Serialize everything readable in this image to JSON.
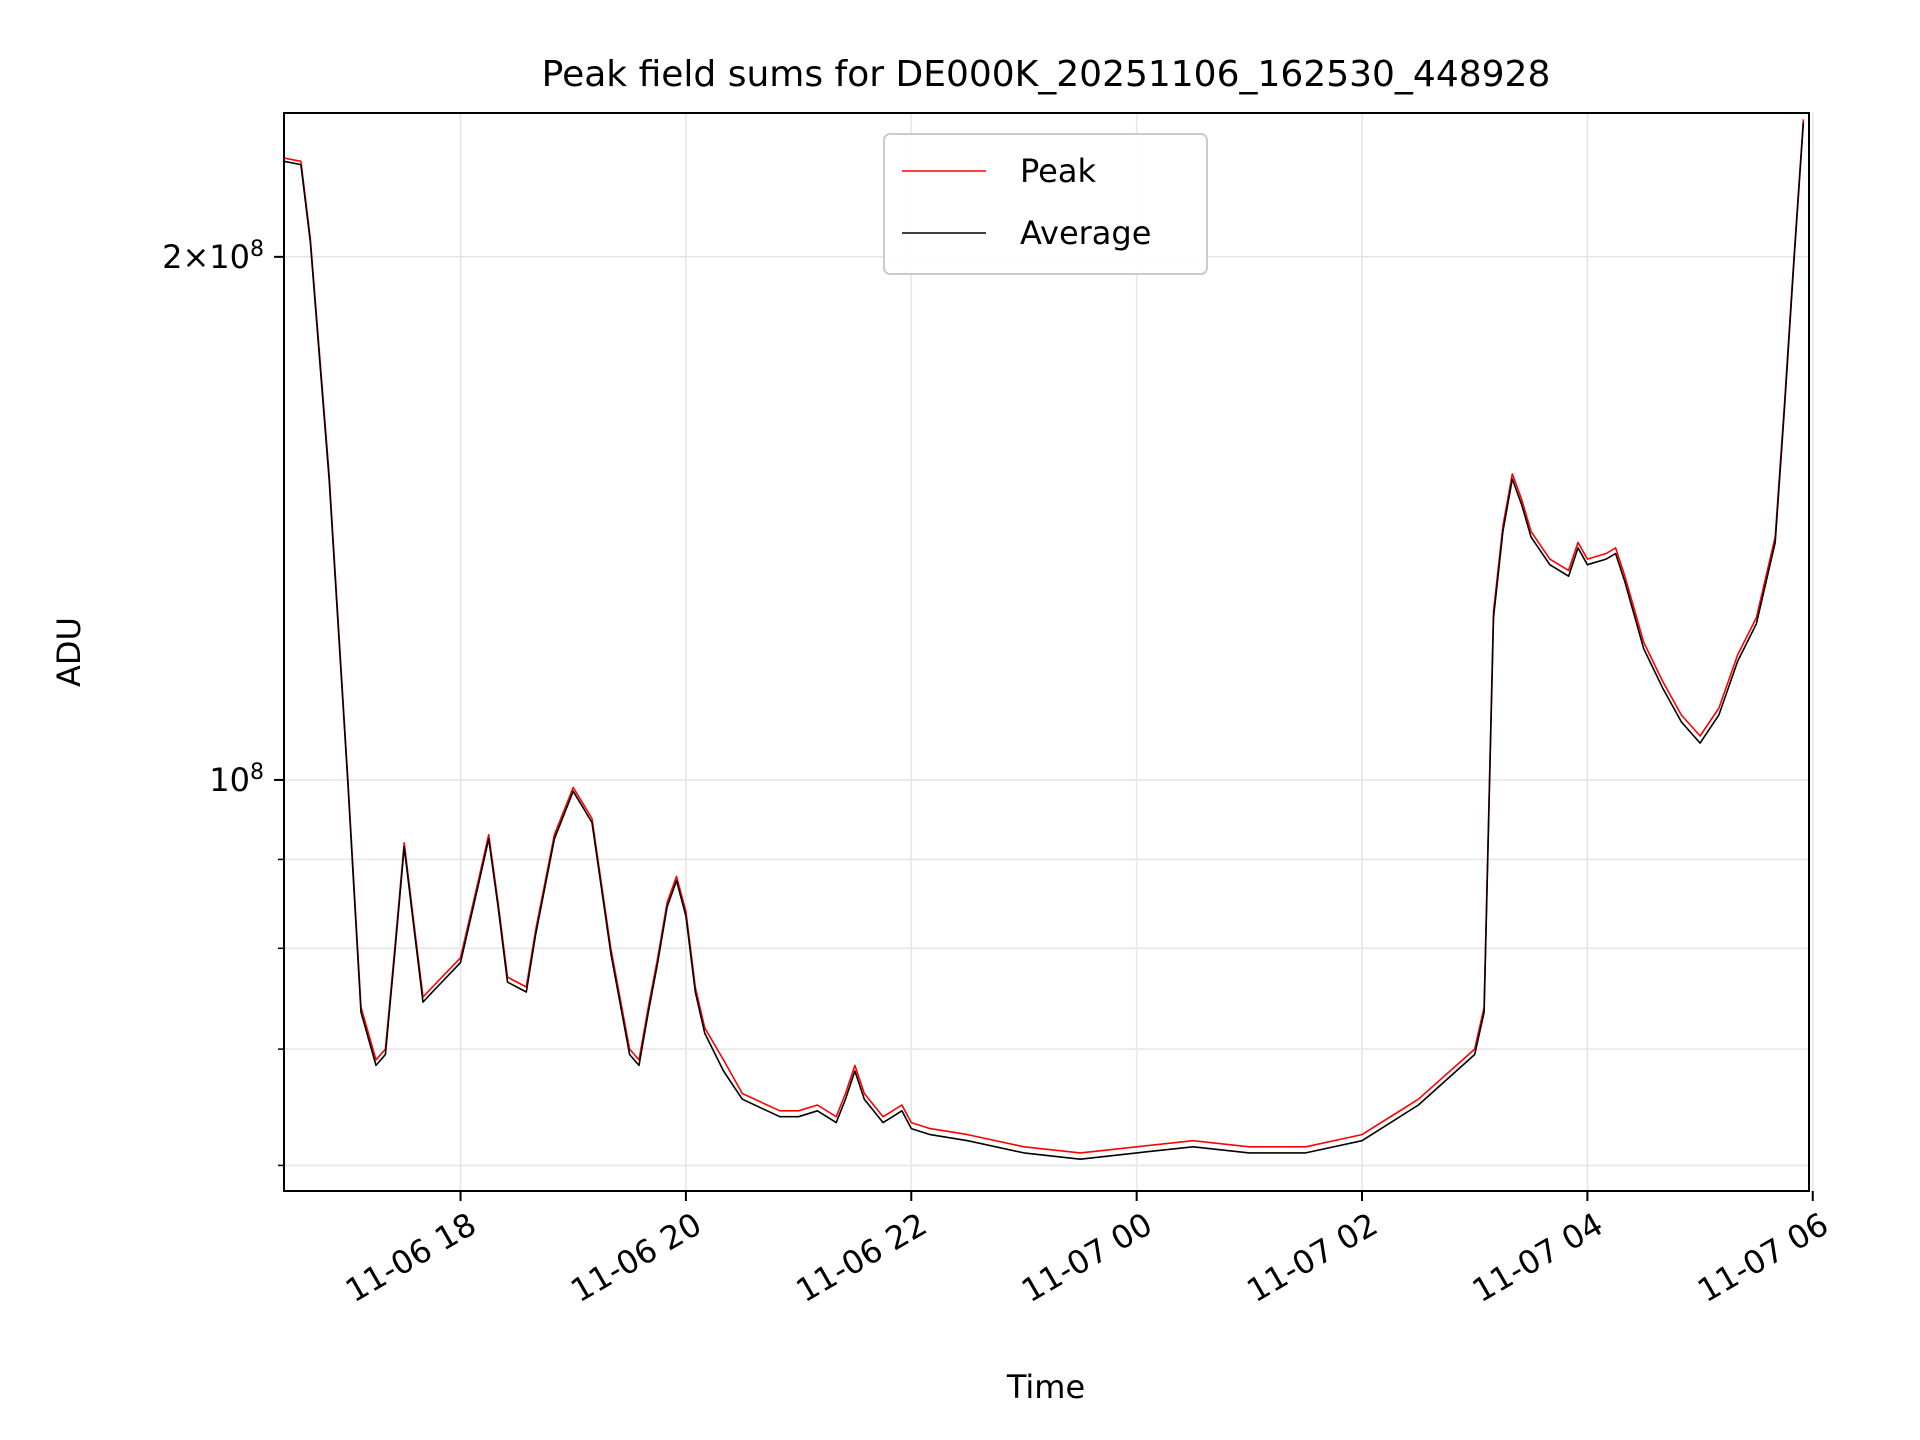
{
  "chart_data": {
    "type": "line",
    "title": "Peak field sums for DE000K_20251106_162530_448928",
    "xlabel": "Time",
    "ylabel": "ADU",
    "x_ticks": [
      "11-06 18",
      "11-06 20",
      "11-06 22",
      "11-07 00",
      "11-07 02",
      "11-07 04",
      "11-07 06"
    ],
    "y_ticks": [
      {
        "value": 100000000,
        "mantissa": "",
        "base": "10",
        "exponent": "8"
      },
      {
        "value": 200000000,
        "mantissa": "2×",
        "base": "10",
        "exponent": "8"
      }
    ],
    "y_scale": "log",
    "xlim": [
      "2025-11-06 16:26",
      "2025-11-07 05:58"
    ],
    "ylim": [
      58000000,
      242000000
    ],
    "grid": true,
    "legend_position": "top-center",
    "x": [
      "2025-11-06 16:26",
      "2025-11-06 16:35",
      "2025-11-06 16:40",
      "2025-11-06 16:50",
      "2025-11-06 17:00",
      "2025-11-06 17:07",
      "2025-11-06 17:15",
      "2025-11-06 17:20",
      "2025-11-06 17:25",
      "2025-11-06 17:30",
      "2025-11-06 17:35",
      "2025-11-06 17:40",
      "2025-11-06 17:45",
      "2025-11-06 18:00",
      "2025-11-06 18:10",
      "2025-11-06 18:15",
      "2025-11-06 18:20",
      "2025-11-06 18:25",
      "2025-11-06 18:35",
      "2025-11-06 18:40",
      "2025-11-06 18:50",
      "2025-11-06 19:00",
      "2025-11-06 19:05",
      "2025-11-06 19:10",
      "2025-11-06 19:20",
      "2025-11-06 19:30",
      "2025-11-06 19:35",
      "2025-11-06 19:40",
      "2025-11-06 19:45",
      "2025-11-06 19:50",
      "2025-11-06 19:55",
      "2025-11-06 20:00",
      "2025-11-06 20:05",
      "2025-11-06 20:10",
      "2025-11-06 20:20",
      "2025-11-06 20:30",
      "2025-11-06 20:50",
      "2025-11-06 21:00",
      "2025-11-06 21:10",
      "2025-11-06 21:20",
      "2025-11-06 21:25",
      "2025-11-06 21:30",
      "2025-11-06 21:35",
      "2025-11-06 21:45",
      "2025-11-06 21:55",
      "2025-11-06 22:00",
      "2025-11-06 22:10",
      "2025-11-06 22:30",
      "2025-11-06 23:00",
      "2025-11-06 23:30",
      "2025-11-07 00:00",
      "2025-11-07 00:30",
      "2025-11-07 01:00",
      "2025-11-07 01:30",
      "2025-11-07 02:00",
      "2025-11-07 02:30",
      "2025-11-07 03:00",
      "2025-11-07 03:05",
      "2025-11-07 03:10",
      "2025-11-07 03:15",
      "2025-11-07 03:20",
      "2025-11-07 03:25",
      "2025-11-07 03:30",
      "2025-11-07 03:40",
      "2025-11-07 03:50",
      "2025-11-07 03:55",
      "2025-11-07 04:00",
      "2025-11-07 04:10",
      "2025-11-07 04:15",
      "2025-11-07 04:20",
      "2025-11-07 04:30",
      "2025-11-07 04:40",
      "2025-11-07 04:50",
      "2025-11-07 05:00",
      "2025-11-07 05:10",
      "2025-11-07 05:20",
      "2025-11-07 05:30",
      "2025-11-07 05:40",
      "2025-11-07 05:45",
      "2025-11-07 05:50",
      "2025-11-07 05:55"
    ],
    "series": [
      {
        "name": "Peak",
        "color": "#ff0000",
        "values": [
          228000000,
          227000000,
          205000000,
          150000000,
          100000000,
          74000000,
          69000000,
          70000000,
          80000000,
          92000000,
          83000000,
          75000000,
          76000000,
          79000000,
          88000000,
          93000000,
          85000000,
          77000000,
          76000000,
          82000000,
          93000000,
          99000000,
          97000000,
          95000000,
          80000000,
          70000000,
          69000000,
          74000000,
          79000000,
          85000000,
          88000000,
          84000000,
          76000000,
          72000000,
          69000000,
          66000000,
          64500000,
          64500000,
          65000000,
          64000000,
          66000000,
          68500000,
          66000000,
          64000000,
          65000000,
          63500000,
          63000000,
          62500000,
          61500000,
          61000000,
          61500000,
          62000000,
          61500000,
          61500000,
          62500000,
          65500000,
          70000000,
          74000000,
          125000000,
          140000000,
          150000000,
          145000000,
          139000000,
          134000000,
          132000000,
          137000000,
          134000000,
          135000000,
          136000000,
          131000000,
          120000000,
          114000000,
          109000000,
          106000000,
          110000000,
          118000000,
          124000000,
          138000000,
          165000000,
          200000000,
          240000000
        ]
      },
      {
        "name": "Average",
        "color": "#000000",
        "values": [
          227000000,
          226000000,
          204000000,
          149000000,
          99500000,
          73500000,
          68500000,
          69500000,
          79500000,
          91500000,
          82500000,
          74500000,
          75500000,
          78500000,
          87500000,
          92500000,
          84500000,
          76500000,
          75500000,
          81500000,
          92500000,
          98500000,
          96500000,
          94500000,
          79500000,
          69500000,
          68500000,
          73500000,
          78500000,
          84500000,
          87500000,
          83500000,
          75500000,
          71500000,
          68000000,
          65500000,
          64000000,
          64000000,
          64500000,
          63500000,
          65500000,
          68000000,
          65500000,
          63500000,
          64500000,
          63000000,
          62500000,
          62000000,
          61000000,
          60500000,
          61000000,
          61500000,
          61000000,
          61000000,
          62000000,
          65000000,
          69500000,
          73500000,
          124000000,
          139000000,
          149000000,
          144000000,
          138000000,
          133000000,
          131000000,
          136000000,
          133000000,
          134000000,
          135000000,
          130000000,
          119000000,
          113000000,
          108000000,
          105000000,
          109000000,
          117000000,
          123000000,
          137000000,
          164000000,
          199000000,
          239000000
        ]
      }
    ]
  }
}
